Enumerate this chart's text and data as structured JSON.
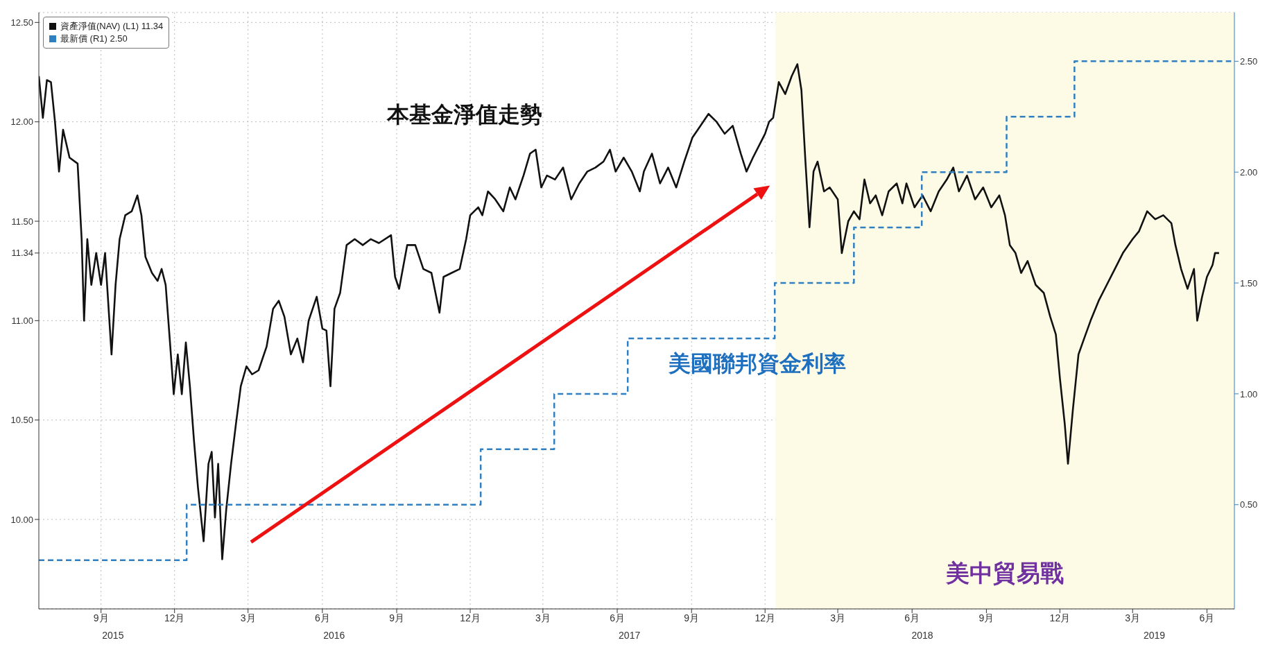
{
  "chart_data": {
    "type": "line",
    "legend": "top left",
    "grid": true,
    "line_style": "solid",
    "marker": "none",
    "xlim": [
      "2015-06-16",
      "2019-07-05"
    ],
    "xticks": [
      {
        "value": "2015-09-01",
        "label": "9月"
      },
      {
        "value": "2015-12-01",
        "label": "12月"
      },
      {
        "value": "2016-03-01",
        "label": "3月"
      },
      {
        "value": "2016-06-01",
        "label": "6月"
      },
      {
        "value": "2016-09-01",
        "label": "9月"
      },
      {
        "value": "2016-12-01",
        "label": "12月"
      },
      {
        "value": "2017-03-01",
        "label": "3月"
      },
      {
        "value": "2017-06-01",
        "label": "6月"
      },
      {
        "value": "2017-09-01",
        "label": "9月"
      },
      {
        "value": "2017-12-01",
        "label": "12月"
      },
      {
        "value": "2018-03-01",
        "label": "3月"
      },
      {
        "value": "2018-06-01",
        "label": "6月"
      },
      {
        "value": "2018-09-01",
        "label": "9月"
      },
      {
        "value": "2018-12-01",
        "label": "12月"
      },
      {
        "value": "2019-03-01",
        "label": "3月"
      },
      {
        "value": "2019-06-01",
        "label": "6月"
      }
    ],
    "ylim": [
      9.55,
      12.55
    ],
    "yticks": [
      {
        "value": 10,
        "label": "10.00"
      },
      {
        "value": 10.5,
        "label": "10.50"
      },
      {
        "value": 11,
        "label": "11.00"
      },
      {
        "value": 11.34,
        "label": "11.34"
      },
      {
        "value": 11.5,
        "label": "11.50"
      },
      {
        "value": 12,
        "label": "12.00"
      },
      {
        "value": 12.5,
        "label": "12.50"
      }
    ],
    "y2lim": [
      0.03,
      2.72
    ],
    "y2ticks": [
      {
        "value": 0.5,
        "label": "0.50"
      },
      {
        "value": 1,
        "label": "1.00"
      },
      {
        "value": 1.5,
        "label": "1.50"
      },
      {
        "value": 2,
        "label": "2.00"
      },
      {
        "value": 2.5,
        "label": "2.50"
      }
    ],
    "bands": [
      {
        "axis": "x",
        "from": "2017-12-14",
        "to": "2019-07-05",
        "label": "美中貿易戰",
        "color": "#fdfbe6"
      }
    ],
    "annotations": [
      "本基金淨值走勢",
      "美國聯邦資金利率",
      "2015",
      "2016",
      "2017",
      "2018",
      "2019"
    ],
    "series": [
      {
        "name": "資產淨值(NAV) (L1) 11.34",
        "color": "#111111",
        "type": "line",
        "x": [
          "2015-06-16",
          "2015-06-21",
          "2015-06-26",
          "2015-07-01",
          "2015-07-06",
          "2015-07-11",
          "2015-07-16",
          "2015-07-24",
          "2015-08-03",
          "2015-08-08",
          "2015-08-11",
          "2015-08-15",
          "2015-08-20",
          "2015-08-26",
          "2015-09-01",
          "2015-09-06",
          "2015-09-14",
          "2015-09-19",
          "2015-09-24",
          "2015-10-01",
          "2015-10-09",
          "2015-10-16",
          "2015-10-21",
          "2015-10-26",
          "2015-11-03",
          "2015-11-10",
          "2015-11-15",
          "2015-11-20",
          "2015-11-25",
          "2015-11-30",
          "2015-12-05",
          "2015-12-10",
          "2015-12-15",
          "2015-12-20",
          "2015-12-25",
          "2015-12-30",
          "2016-01-06",
          "2016-01-12",
          "2016-01-16",
          "2016-01-20",
          "2016-01-24",
          "2016-01-29",
          "2016-02-03",
          "2016-02-09",
          "2016-02-15",
          "2016-02-21",
          "2016-02-28",
          "2016-03-06",
          "2016-03-14",
          "2016-03-24",
          "2016-04-01",
          "2016-04-08",
          "2016-04-15",
          "2016-04-23",
          "2016-05-01",
          "2016-05-08",
          "2016-05-15",
          "2016-05-25",
          "2016-06-01",
          "2016-06-06",
          "2016-06-11",
          "2016-06-16",
          "2016-06-23",
          "2016-07-01",
          "2016-07-11",
          "2016-07-21",
          "2016-07-31",
          "2016-08-10",
          "2016-08-25",
          "2016-08-30",
          "2016-09-04",
          "2016-09-14",
          "2016-09-24",
          "2016-10-04",
          "2016-10-14",
          "2016-10-24",
          "2016-10-29",
          "2016-11-08",
          "2016-11-18",
          "2016-11-26",
          "2016-12-01",
          "2016-12-11",
          "2016-12-16",
          "2016-12-23",
          "2017-01-01",
          "2017-01-11",
          "2017-01-19",
          "2017-01-26",
          "2017-02-05",
          "2017-02-13",
          "2017-02-20",
          "2017-02-27",
          "2017-03-06",
          "2017-03-16",
          "2017-03-26",
          "2017-04-05",
          "2017-04-15",
          "2017-04-25",
          "2017-05-05",
          "2017-05-15",
          "2017-05-23",
          "2017-05-30",
          "2017-06-09",
          "2017-06-19",
          "2017-06-29",
          "2017-07-04",
          "2017-07-14",
          "2017-07-24",
          "2017-08-03",
          "2017-08-13",
          "2017-08-23",
          "2017-09-02",
          "2017-09-12",
          "2017-09-22",
          "2017-10-02",
          "2017-10-12",
          "2017-10-22",
          "2017-11-01",
          "2017-11-08",
          "2017-11-16",
          "2017-11-26",
          "2017-12-01",
          "2017-12-06",
          "2017-12-11",
          "2017-12-18",
          "2017-12-26",
          "2018-01-03",
          "2018-01-10",
          "2018-01-15",
          "2018-01-20",
          "2018-01-25",
          "2018-01-30",
          "2018-02-04",
          "2018-02-12",
          "2018-02-19",
          "2018-03-01",
          "2018-03-06",
          "2018-03-14",
          "2018-03-21",
          "2018-03-28",
          "2018-04-03",
          "2018-04-10",
          "2018-04-17",
          "2018-04-25",
          "2018-05-03",
          "2018-05-13",
          "2018-05-20",
          "2018-05-25",
          "2018-06-04",
          "2018-06-14",
          "2018-06-24",
          "2018-07-04",
          "2018-07-14",
          "2018-07-22",
          "2018-07-29",
          "2018-08-08",
          "2018-08-18",
          "2018-08-28",
          "2018-09-07",
          "2018-09-17",
          "2018-09-24",
          "2018-09-30",
          "2018-10-07",
          "2018-10-14",
          "2018-10-22",
          "2018-11-01",
          "2018-11-11",
          "2018-11-19",
          "2018-11-26",
          "2018-12-01",
          "2018-12-07",
          "2018-12-11",
          "2018-12-17",
          "2018-12-24",
          "2018-12-31",
          "2019-01-08",
          "2019-01-18",
          "2019-01-28",
          "2019-02-07",
          "2019-02-17",
          "2019-03-01",
          "2019-03-09",
          "2019-03-19",
          "2019-03-29",
          "2019-04-08",
          "2019-04-18",
          "2019-04-23",
          "2019-04-30",
          "2019-05-08",
          "2019-05-16",
          "2019-05-20",
          "2019-05-26",
          "2019-06-01",
          "2019-06-08",
          "2019-06-11",
          "2019-06-16"
        ],
        "values": [
          12.23,
          12.02,
          12.21,
          12.2,
          12.0,
          11.75,
          11.96,
          11.82,
          11.79,
          11.41,
          11.0,
          11.41,
          11.18,
          11.34,
          11.18,
          11.34,
          10.83,
          11.18,
          11.41,
          11.53,
          11.55,
          11.63,
          11.53,
          11.32,
          11.24,
          11.2,
          11.26,
          11.18,
          10.91,
          10.63,
          10.83,
          10.63,
          10.89,
          10.67,
          10.4,
          10.16,
          9.89,
          10.28,
          10.34,
          10.01,
          10.28,
          9.8,
          10.05,
          10.28,
          10.48,
          10.67,
          10.77,
          10.73,
          10.75,
          10.87,
          11.06,
          11.1,
          11.02,
          10.83,
          10.91,
          10.79,
          11.0,
          11.12,
          10.96,
          10.95,
          10.67,
          11.06,
          11.14,
          11.38,
          11.41,
          11.38,
          11.41,
          11.39,
          11.43,
          11.22,
          11.16,
          11.38,
          11.38,
          11.26,
          11.24,
          11.04,
          11.22,
          11.24,
          11.26,
          11.41,
          11.53,
          11.57,
          11.53,
          11.65,
          11.61,
          11.55,
          11.67,
          11.61,
          11.73,
          11.84,
          11.86,
          11.67,
          11.73,
          11.71,
          11.77,
          11.61,
          11.69,
          11.75,
          11.77,
          11.8,
          11.86,
          11.75,
          11.82,
          11.75,
          11.65,
          11.75,
          11.84,
          11.69,
          11.77,
          11.67,
          11.8,
          11.92,
          11.98,
          12.04,
          12.0,
          11.94,
          11.98,
          11.84,
          11.75,
          11.82,
          11.9,
          11.94,
          12.0,
          12.02,
          12.2,
          12.14,
          12.23,
          12.29,
          12.16,
          11.8,
          11.47,
          11.75,
          11.8,
          11.65,
          11.67,
          11.61,
          11.34,
          11.5,
          11.55,
          11.51,
          11.71,
          11.59,
          11.63,
          11.53,
          11.65,
          11.69,
          11.59,
          11.69,
          11.57,
          11.63,
          11.55,
          11.65,
          11.71,
          11.77,
          11.65,
          11.73,
          11.61,
          11.67,
          11.57,
          11.63,
          11.53,
          11.38,
          11.34,
          11.24,
          11.3,
          11.18,
          11.14,
          11.02,
          10.93,
          10.71,
          10.48,
          10.28,
          10.55,
          10.83,
          10.91,
          11.0,
          11.1,
          11.18,
          11.26,
          11.34,
          11.41,
          11.45,
          11.55,
          11.51,
          11.53,
          11.49,
          11.38,
          11.26,
          11.16,
          11.26,
          11.0,
          11.12,
          11.22,
          11.28,
          11.34,
          11.34
        ]
      },
      {
        "name": "最新價 (R1) 2.50",
        "color": "#2f7fc1",
        "type": "step",
        "axis": "y2",
        "line_style": "dashed",
        "x": [
          "2015-06-16",
          "2015-12-16",
          "2016-12-14",
          "2017-03-15",
          "2017-06-14",
          "2017-12-13",
          "2018-03-21",
          "2018-06-13",
          "2018-09-26",
          "2018-12-19",
          "2019-07-01"
        ],
        "values": [
          0.25,
          0.5,
          0.75,
          1.0,
          1.25,
          1.5,
          1.75,
          2.0,
          2.25,
          2.5,
          2.5
        ]
      }
    ]
  }
}
